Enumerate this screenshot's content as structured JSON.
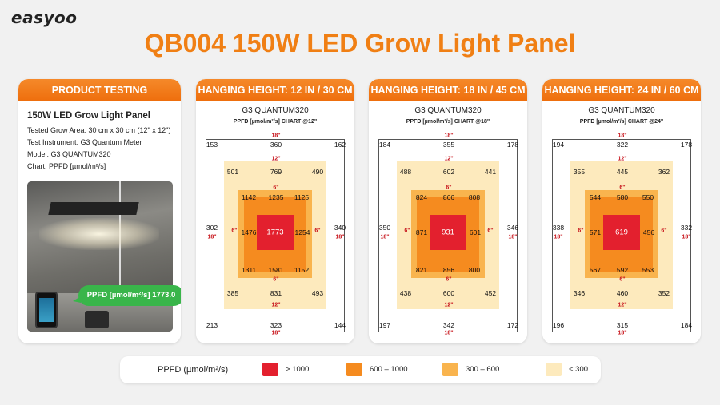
{
  "brand": "easyoo",
  "title": "QB004 150W LED Grow Light Panel",
  "colors": {
    "accent": "#f07f14",
    "zone_gt1000": "#e3202e",
    "zone_600_1000": "#f58b1f",
    "zone_300_600": "#f9b44e",
    "zone_lt300": "#fdeabd",
    "callout": "#39b54a"
  },
  "info": {
    "header": "PRODUCT TESTING",
    "heading": "150W LED Grow Light Panel",
    "lines": [
      "Tested Grow Area: 30 cm x 30 cm (12\" x 12\")",
      "Test Instrument: G3 Quantum Meter",
      "Model: G3 QUANTUM320",
      "Chart: PPFD [µmol/m²/s]"
    ],
    "callout": "PPFD [µmol/m²/s] 1773.0"
  },
  "charts": [
    {
      "header": "HANGING HEIGHT: 12 IN / 30 CM",
      "model": "G3 QUANTUM320",
      "subtitle": "PPFD [µmol/m²/s] CHART @12\"",
      "outer": [
        "153",
        "360",
        "162",
        "302",
        "340",
        "213",
        "323",
        "144"
      ],
      "light": [
        "501",
        "769",
        "490",
        "385",
        "831",
        "493"
      ],
      "mid": [
        "1142",
        "1235",
        "1125",
        "1476",
        "1254",
        "1311",
        "1581",
        "1152"
      ],
      "center": "1773",
      "dims": {
        "d18": "18\"",
        "d12": "12\"",
        "d6": "6\""
      }
    },
    {
      "header": "HANGING HEIGHT: 18 IN / 45 CM",
      "model": "G3 QUANTUM320",
      "subtitle": "PPFD [µmol/m²/s] CHART @18\"",
      "outer": [
        "184",
        "355",
        "178",
        "350",
        "346",
        "197",
        "342",
        "172"
      ],
      "light": [
        "488",
        "602",
        "441",
        "438",
        "600",
        "452"
      ],
      "mid": [
        "824",
        "866",
        "808",
        "871",
        "601",
        "821",
        "856",
        "800"
      ],
      "center": "931",
      "dims": {
        "d18": "18\"",
        "d12": "12\"",
        "d6": "6\""
      }
    },
    {
      "header": "HANGING HEIGHT: 24 IN / 60 CM",
      "model": "G3 QUANTUM320",
      "subtitle": "PPFD [µmol/m²/s] CHART @24\"",
      "outer": [
        "194",
        "322",
        "178",
        "338",
        "332",
        "196",
        "315",
        "184"
      ],
      "light": [
        "355",
        "445",
        "362",
        "346",
        "460",
        "352"
      ],
      "mid": [
        "544",
        "580",
        "550",
        "571",
        "456",
        "567",
        "592",
        "553"
      ],
      "center": "619",
      "dims": {
        "d18": "18\"",
        "d12": "12\"",
        "d6": "6\""
      }
    }
  ],
  "legend": {
    "title": "PPFD (µmol/m²/s)",
    "items": [
      {
        "label": "> 1000",
        "color": "#e3202e"
      },
      {
        "label": "600 – 1000",
        "color": "#f58b1f"
      },
      {
        "label": "300 – 600",
        "color": "#f9b44e"
      },
      {
        "label": "< 300",
        "color": "#fdeabd"
      }
    ]
  }
}
